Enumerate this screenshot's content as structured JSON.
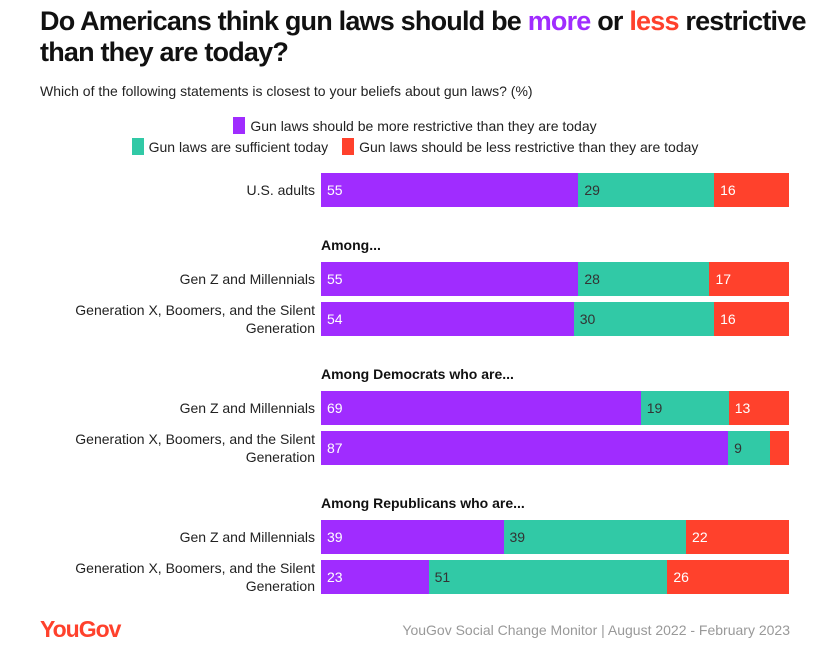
{
  "title": {
    "part1": "Do Americans think gun laws should be ",
    "more": "more",
    "part2": " or ",
    "less": "less",
    "part3": " restrictive than they are today?"
  },
  "subtitle": "Which of the following statements is closest to your beliefs about gun laws? (%)",
  "colors": {
    "more": "#a02cff",
    "sufficient": "#31c9a6",
    "less": "#ff412c"
  },
  "chart_data": {
    "type": "bar",
    "orientation": "horizontal",
    "stacked": true,
    "xlim": [
      0,
      100
    ],
    "series": [
      {
        "name": "Gun laws should be more restrictive than they are today",
        "color": "#a02cff"
      },
      {
        "name": "Gun laws are sufficient today",
        "color": "#31c9a6"
      },
      {
        "name": "Gun laws should be less restrictive than they are today",
        "color": "#ff412c"
      }
    ],
    "groups": [
      {
        "heading": "",
        "rows": [
          {
            "label": "U.S. adults",
            "values": [
              55,
              29,
              16
            ]
          }
        ]
      },
      {
        "heading": "Among...",
        "rows": [
          {
            "label": "Gen Z and Millennials",
            "values": [
              55,
              28,
              17
            ]
          },
          {
            "label": "Generation X, Boomers, and the Silent Generation",
            "values": [
              54,
              30,
              16
            ]
          }
        ]
      },
      {
        "heading": "Among Democrats who are...",
        "rows": [
          {
            "label": "Gen Z and Millennials",
            "values": [
              69,
              19,
              13
            ]
          },
          {
            "label": "Generation X, Boomers, and the Silent Generation",
            "values": [
              87,
              9,
              4
            ],
            "labels": [
              "87",
              "9",
              ""
            ]
          }
        ]
      },
      {
        "heading": "Among Republicans who are...",
        "rows": [
          {
            "label": "Gen Z and Millennials",
            "values": [
              39,
              39,
              22
            ]
          },
          {
            "label": "Generation X, Boomers, and the Silent Generation",
            "values": [
              23,
              51,
              26
            ]
          }
        ]
      }
    ]
  },
  "footer": {
    "logo": "YouGov",
    "source": "YouGov Social Change Monitor | August 2022 - February 2023"
  }
}
